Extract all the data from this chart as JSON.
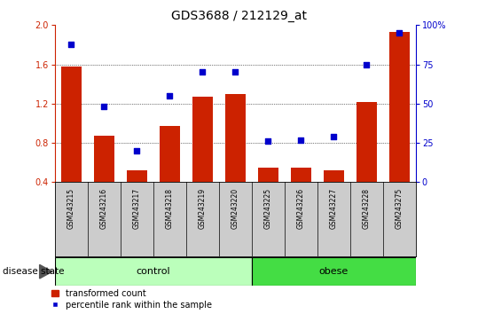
{
  "title": "GDS3688 / 212129_at",
  "samples": [
    "GSM243215",
    "GSM243216",
    "GSM243217",
    "GSM243218",
    "GSM243219",
    "GSM243220",
    "GSM243225",
    "GSM243226",
    "GSM243227",
    "GSM243228",
    "GSM243275"
  ],
  "transformed_count": [
    1.58,
    0.87,
    0.52,
    0.97,
    1.27,
    1.3,
    0.55,
    0.55,
    0.52,
    1.22,
    1.93
  ],
  "percentile_rank": [
    88,
    48,
    20,
    55,
    70,
    70,
    26,
    27,
    29,
    75,
    95
  ],
  "bar_color": "#cc2200",
  "dot_color": "#0000cc",
  "ylim_left": [
    0.4,
    2.0
  ],
  "ylim_right": [
    0,
    100
  ],
  "yticks_left": [
    0.4,
    0.8,
    1.2,
    1.6,
    2.0
  ],
  "yticks_right": [
    0,
    25,
    50,
    75,
    100
  ],
  "ytick_labels_right": [
    "0",
    "25",
    "50",
    "75",
    "100%"
  ],
  "control_color": "#bbffbb",
  "obese_color": "#44dd44",
  "group_label_control": "control",
  "group_label_obese": "obese",
  "disease_state_label": "disease state",
  "legend_bar_label": "transformed count",
  "legend_dot_label": "percentile rank within the sample",
  "grid_color": "black",
  "tick_area_color": "#cccccc",
  "n_control": 6,
  "n_obese": 5,
  "bar_bottom": 0.4,
  "ytick_label_fontsize": 7,
  "sample_label_fontsize": 5.5,
  "title_fontsize": 10,
  "group_fontsize": 8,
  "legend_fontsize": 7,
  "disease_state_fontsize": 7.5
}
